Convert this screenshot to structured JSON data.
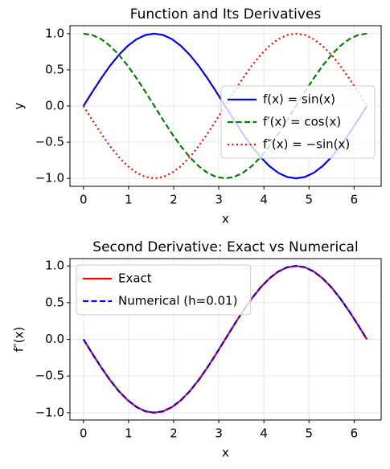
{
  "chart_data": [
    {
      "type": "line",
      "title": "Function and Its Derivatives",
      "xlabel": "x",
      "ylabel": "y",
      "x": [
        0,
        0.196,
        0.393,
        0.589,
        0.785,
        0.982,
        1.178,
        1.374,
        1.571,
        1.767,
        1.963,
        2.16,
        2.356,
        2.553,
        2.749,
        2.945,
        3.142,
        3.338,
        3.534,
        3.731,
        3.927,
        4.123,
        4.32,
        4.516,
        4.712,
        4.909,
        5.105,
        5.301,
        5.498,
        5.694,
        5.89,
        6.087,
        6.283
      ],
      "series": [
        {
          "name": "f(x) = sin(x)",
          "color": "#0000ff",
          "linestyle": "solid",
          "values": [
            0,
            0.195,
            0.383,
            0.556,
            0.707,
            0.831,
            0.924,
            0.981,
            1,
            0.981,
            0.924,
            0.831,
            0.707,
            0.556,
            0.383,
            0.195,
            0,
            -0.195,
            -0.383,
            -0.556,
            -0.707,
            -0.831,
            -0.924,
            -0.981,
            -1,
            -0.981,
            -0.924,
            -0.831,
            -0.707,
            -0.556,
            -0.383,
            -0.195,
            0
          ]
        },
        {
          "name": "f′(x) = cos(x)",
          "color": "#008000",
          "linestyle": "dashed",
          "values": [
            1,
            0.981,
            0.924,
            0.831,
            0.707,
            0.556,
            0.383,
            0.195,
            0,
            -0.195,
            -0.383,
            -0.556,
            -0.707,
            -0.831,
            -0.924,
            -0.981,
            -1,
            -0.981,
            -0.924,
            -0.831,
            -0.707,
            -0.556,
            -0.383,
            -0.195,
            0,
            0.195,
            0.383,
            0.556,
            0.707,
            0.831,
            0.924,
            0.981,
            1
          ]
        },
        {
          "name": "f″(x) = −sin(x)",
          "color": "#ff0000",
          "linestyle": "dotted",
          "values": [
            0,
            -0.195,
            -0.383,
            -0.556,
            -0.707,
            -0.831,
            -0.924,
            -0.981,
            -1,
            -0.981,
            -0.924,
            -0.831,
            -0.707,
            -0.556,
            -0.383,
            -0.195,
            0,
            0.195,
            0.383,
            0.556,
            0.707,
            0.831,
            0.924,
            0.981,
            1,
            0.981,
            0.924,
            0.831,
            0.707,
            0.556,
            0.383,
            0.195,
            0
          ]
        }
      ],
      "xlim": [
        -0.3,
        6.6
      ],
      "ylim": [
        -1.11,
        1.11
      ],
      "xticks": [
        0,
        1,
        2,
        3,
        4,
        5,
        6
      ],
      "yticks": [
        {
          "value": -1,
          "label": "−1.0"
        },
        {
          "value": -0.5,
          "label": "−0.5"
        },
        {
          "value": 0,
          "label": "0.0"
        },
        0.5,
        {
          "value": 1,
          "label": "1.0"
        }
      ],
      "grid": true,
      "legend": "center right"
    },
    {
      "type": "line",
      "title": "Second Derivative: Exact vs Numerical",
      "xlabel": "x",
      "ylabel": "f″(x)",
      "x": [
        0,
        0.196,
        0.393,
        0.589,
        0.785,
        0.982,
        1.178,
        1.374,
        1.571,
        1.767,
        1.963,
        2.16,
        2.356,
        2.553,
        2.749,
        2.945,
        3.142,
        3.338,
        3.534,
        3.731,
        3.927,
        4.123,
        4.32,
        4.516,
        4.712,
        4.909,
        5.105,
        5.301,
        5.498,
        5.694,
        5.89,
        6.087,
        6.283
      ],
      "series": [
        {
          "name": "Exact",
          "color": "#ff0000",
          "linestyle": "solid",
          "values": [
            0,
            -0.195,
            -0.383,
            -0.556,
            -0.707,
            -0.831,
            -0.924,
            -0.981,
            -1,
            -0.981,
            -0.924,
            -0.831,
            -0.707,
            -0.556,
            -0.383,
            -0.195,
            0,
            0.195,
            0.383,
            0.556,
            0.707,
            0.831,
            0.924,
            0.981,
            1,
            0.981,
            0.924,
            0.831,
            0.707,
            0.556,
            0.383,
            0.195,
            0
          ]
        },
        {
          "name": "Numerical (h=0.01)",
          "color": "#0000ff",
          "linestyle": "dashed",
          "values": [
            0,
            -0.195,
            -0.383,
            -0.556,
            -0.707,
            -0.831,
            -0.924,
            -0.981,
            -1,
            -0.981,
            -0.924,
            -0.831,
            -0.707,
            -0.556,
            -0.383,
            -0.195,
            0,
            0.195,
            0.383,
            0.556,
            0.707,
            0.831,
            0.924,
            0.981,
            1,
            0.981,
            0.924,
            0.831,
            0.707,
            0.556,
            0.383,
            0.195,
            0
          ]
        }
      ],
      "xlim": [
        -0.3,
        6.6
      ],
      "ylim": [
        -1.1,
        1.1
      ],
      "xticks": [
        0,
        1,
        2,
        3,
        4,
        5,
        6
      ],
      "yticks": [
        {
          "value": -1,
          "label": "−1.0"
        },
        {
          "value": -0.5,
          "label": "−0.5"
        },
        {
          "value": 0,
          "label": "0.0"
        },
        0.5,
        {
          "value": 1,
          "label": "1.0"
        }
      ],
      "grid": true,
      "legend": "upper left"
    }
  ]
}
